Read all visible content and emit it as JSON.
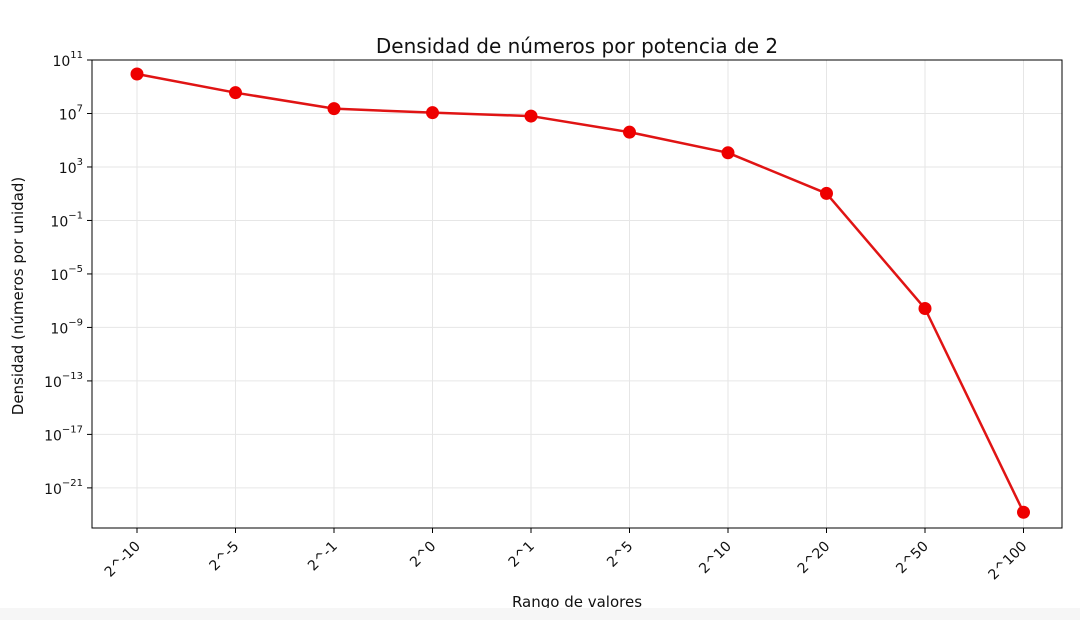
{
  "chart_data": {
    "type": "line",
    "title": "Densidad de números por potencia de 2",
    "xlabel": "Rango de valores",
    "ylabel": "Densidad (números por unidad)",
    "categories": [
      "2^-10",
      "2^-5",
      "2^-1",
      "2^0",
      "2^1",
      "2^5",
      "2^10",
      "2^20",
      "2^50",
      "2^100"
    ],
    "series": [
      {
        "values": [
          9000000000.0,
          360000000.0,
          23000000.0,
          11500000.0,
          6400000.0,
          400000.0,
          11500.0,
          10.5,
          2.6e-08,
          1.5e-23
        ]
      }
    ],
    "y_scale": "log",
    "y_ticks": [
      {
        "base": "10",
        "exp": "11",
        "value": 100000000000.0
      },
      {
        "base": "10",
        "exp": "7",
        "value": 10000000.0
      },
      {
        "base": "10",
        "exp": "3",
        "value": 1000.0
      },
      {
        "base": "10",
        "exp": "−1",
        "value": 0.1
      },
      {
        "base": "10",
        "exp": "−5",
        "value": 1e-05
      },
      {
        "base": "10",
        "exp": "−9",
        "value": 1e-09
      },
      {
        "base": "10",
        "exp": "−13",
        "value": 1e-13
      },
      {
        "base": "10",
        "exp": "−17",
        "value": 1e-17
      },
      {
        "base": "10",
        "exp": "−21",
        "value": 1e-21
      }
    ],
    "ylim": [
      1e-24,
      100000000000.0
    ],
    "grid": true,
    "line_color": "#e01414",
    "marker_color": "#ee0000",
    "grid_color": "#e6e6e6"
  }
}
